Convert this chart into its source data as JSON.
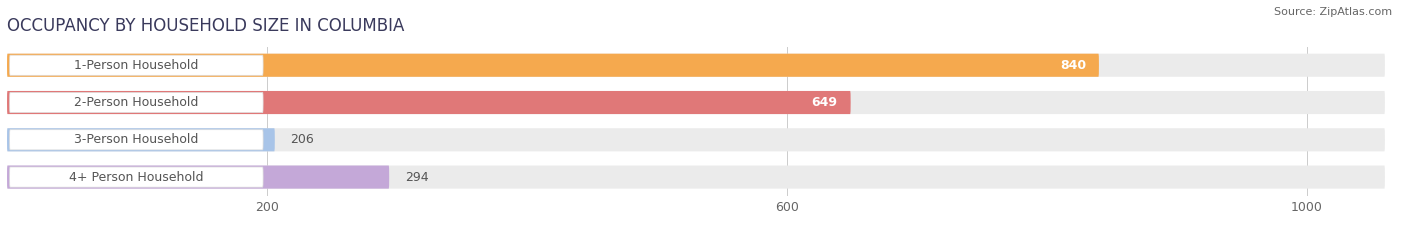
{
  "title": "OCCUPANCY BY HOUSEHOLD SIZE IN COLUMBIA",
  "source": "Source: ZipAtlas.com",
  "categories": [
    "1-Person Household",
    "2-Person Household",
    "3-Person Household",
    "4+ Person Household"
  ],
  "values": [
    840,
    649,
    206,
    294
  ],
  "bar_colors": [
    "#F5A94E",
    "#E07878",
    "#A8C4E8",
    "#C4A8D8"
  ],
  "bar_bg_color": "#EBEBEB",
  "label_bg_color": "#FFFFFF",
  "xlim_max": 1060,
  "xticks": [
    200,
    600,
    1000
  ],
  "title_fontsize": 12,
  "source_fontsize": 8,
  "label_fontsize": 9,
  "value_fontsize": 9,
  "bar_height": 0.62,
  "bg_color": "#FFFFFF",
  "text_color": "#555555",
  "value_inside_color": "#FFFFFF",
  "value_outside_color": "#555555",
  "inside_threshold": 400
}
